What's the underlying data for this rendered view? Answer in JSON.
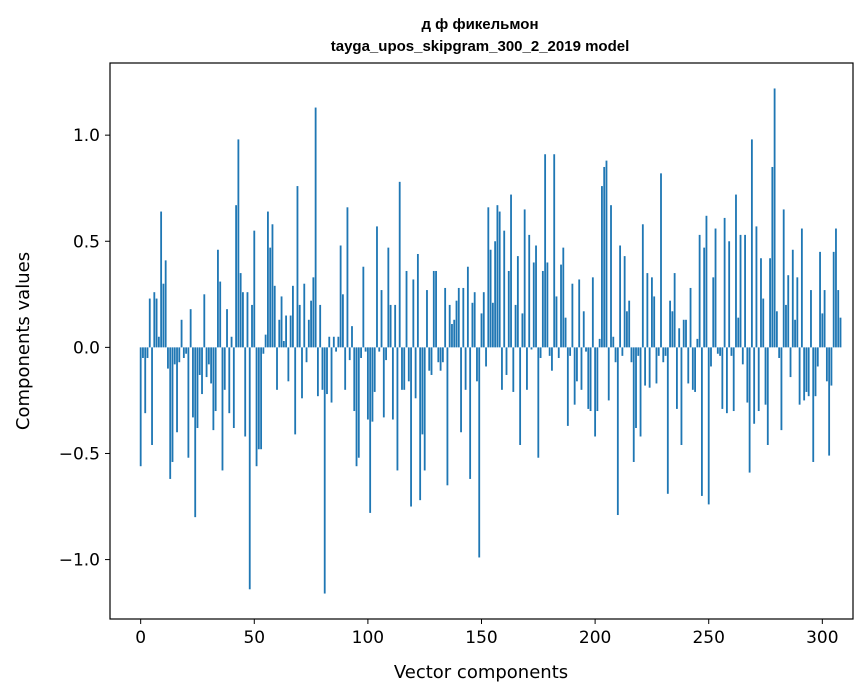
{
  "chart_data": {
    "type": "bar",
    "title": "д ф фикельмон",
    "subtitle": "tayga_upos_skipgram_300_2_2019 model",
    "xlabel": "Vector components",
    "ylabel": "Components values",
    "xlim": [
      -13.5,
      313.5
    ],
    "ylim": [
      -1.28,
      1.34
    ],
    "xticks": [
      0,
      50,
      100,
      150,
      200,
      250,
      300
    ],
    "yticks": [
      -1.0,
      -0.5,
      0.0,
      0.5,
      1.0
    ],
    "ytick_labels": [
      "−1.0",
      "−0.5",
      "0.0",
      "0.5",
      "1.0"
    ],
    "grid": false,
    "bar_color": "#1f77b4",
    "x_start": 0,
    "values": [
      -0.56,
      -0.05,
      -0.31,
      -0.05,
      0.23,
      -0.46,
      0.26,
      0.23,
      0.05,
      0.64,
      0.3,
      0.41,
      -0.1,
      -0.62,
      -0.54,
      -0.08,
      -0.4,
      -0.07,
      0.13,
      -0.05,
      -0.03,
      -0.52,
      0.18,
      -0.33,
      -0.8,
      -0.38,
      -0.13,
      -0.22,
      0.25,
      -0.14,
      -0.08,
      -0.17,
      -0.39,
      -0.3,
      0.46,
      0.31,
      -0.58,
      -0.2,
      0.18,
      -0.31,
      0.05,
      -0.38,
      0.67,
      0.98,
      0.35,
      0.26,
      -0.42,
      0.26,
      -1.14,
      0.2,
      0.55,
      -0.56,
      -0.48,
      -0.48,
      -0.03,
      0.06,
      0.64,
      0.47,
      0.58,
      0.29,
      -0.2,
      0.13,
      0.24,
      0.03,
      0.15,
      -0.16,
      0.15,
      0.29,
      -0.41,
      0.76,
      0.2,
      -0.24,
      0.3,
      -0.07,
      0.13,
      0.22,
      0.33,
      1.13,
      -0.23,
      0.2,
      -0.2,
      -1.16,
      -0.22,
      0.05,
      -0.26,
      0.05,
      -0.02,
      0.05,
      0.48,
      0.25,
      -0.2,
      0.66,
      -0.06,
      0.1,
      -0.3,
      -0.56,
      -0.52,
      -0.05,
      0.38,
      -0.02,
      -0.34,
      -0.78,
      -0.35,
      -0.21,
      0.57,
      -0.02,
      0.27,
      -0.33,
      -0.06,
      0.47,
      0.2,
      -0.34,
      0.2,
      -0.58,
      0.78,
      -0.2,
      -0.2,
      0.36,
      -0.16,
      -0.75,
      0.32,
      -0.24,
      0.44,
      -0.72,
      -0.41,
      -0.58,
      0.27,
      -0.11,
      -0.13,
      0.36,
      0.36,
      -0.07,
      -0.11,
      -0.07,
      0.28,
      -0.65,
      0.2,
      0.11,
      0.13,
      0.22,
      0.28,
      -0.4,
      0.28,
      -0.2,
      0.38,
      -0.62,
      0.21,
      0.26,
      -0.16,
      -0.99,
      0.16,
      0.26,
      -0.09,
      0.66,
      0.46,
      0.21,
      0.5,
      0.67,
      0.64,
      -0.2,
      0.55,
      -0.13,
      0.36,
      0.72,
      -0.21,
      0.2,
      0.43,
      -0.46,
      0.16,
      0.65,
      -0.2,
      0.53,
      -0.01,
      0.4,
      0.48,
      -0.52,
      -0.05,
      0.36,
      0.91,
      0.4,
      -0.04,
      -0.11,
      0.91,
      0.24,
      -0.05,
      0.39,
      0.47,
      0.14,
      -0.37,
      -0.04,
      0.3,
      -0.27,
      -0.16,
      0.32,
      -0.2,
      0.17,
      -0.02,
      -0.29,
      -0.3,
      0.33,
      -0.42,
      -0.3,
      0.04,
      0.76,
      0.85,
      0.88,
      -0.25,
      0.67,
      0.05,
      -0.07,
      -0.79,
      0.48,
      -0.04,
      0.43,
      0.17,
      0.22,
      -0.07,
      -0.54,
      -0.38,
      -0.04,
      -0.42,
      0.58,
      -0.18,
      0.35,
      -0.19,
      0.33,
      0.24,
      -0.17,
      -0.04,
      0.82,
      -0.07,
      -0.04,
      -0.69,
      0.22,
      0.17,
      0.35,
      -0.29,
      0.09,
      -0.46,
      0.13,
      0.13,
      -0.17,
      0.28,
      -0.2,
      -0.21,
      0.04,
      0.53,
      -0.7,
      0.47,
      0.62,
      -0.74,
      -0.09,
      0.33,
      0.56,
      -0.03,
      -0.04,
      -0.29,
      0.61,
      -0.31,
      0.5,
      -0.04,
      -0.3,
      0.72,
      0.14,
      0.53,
      -0.08,
      0.53,
      -0.26,
      -0.59,
      0.98,
      -0.36,
      0.57,
      -0.3,
      0.42,
      0.23,
      -0.27,
      -0.46,
      0.42,
      0.85,
      1.22,
      0.17,
      -0.05,
      -0.39,
      0.65,
      0.2,
      0.34,
      -0.14,
      0.46,
      0.13,
      0.33,
      -0.27,
      0.56,
      -0.25,
      -0.21,
      -0.23,
      0.27,
      -0.54,
      -0.23,
      -0.09,
      0.45,
      0.16,
      0.27,
      -0.16,
      -0.51,
      -0.18,
      0.45,
      0.56,
      0.27,
      0.14
    ]
  }
}
